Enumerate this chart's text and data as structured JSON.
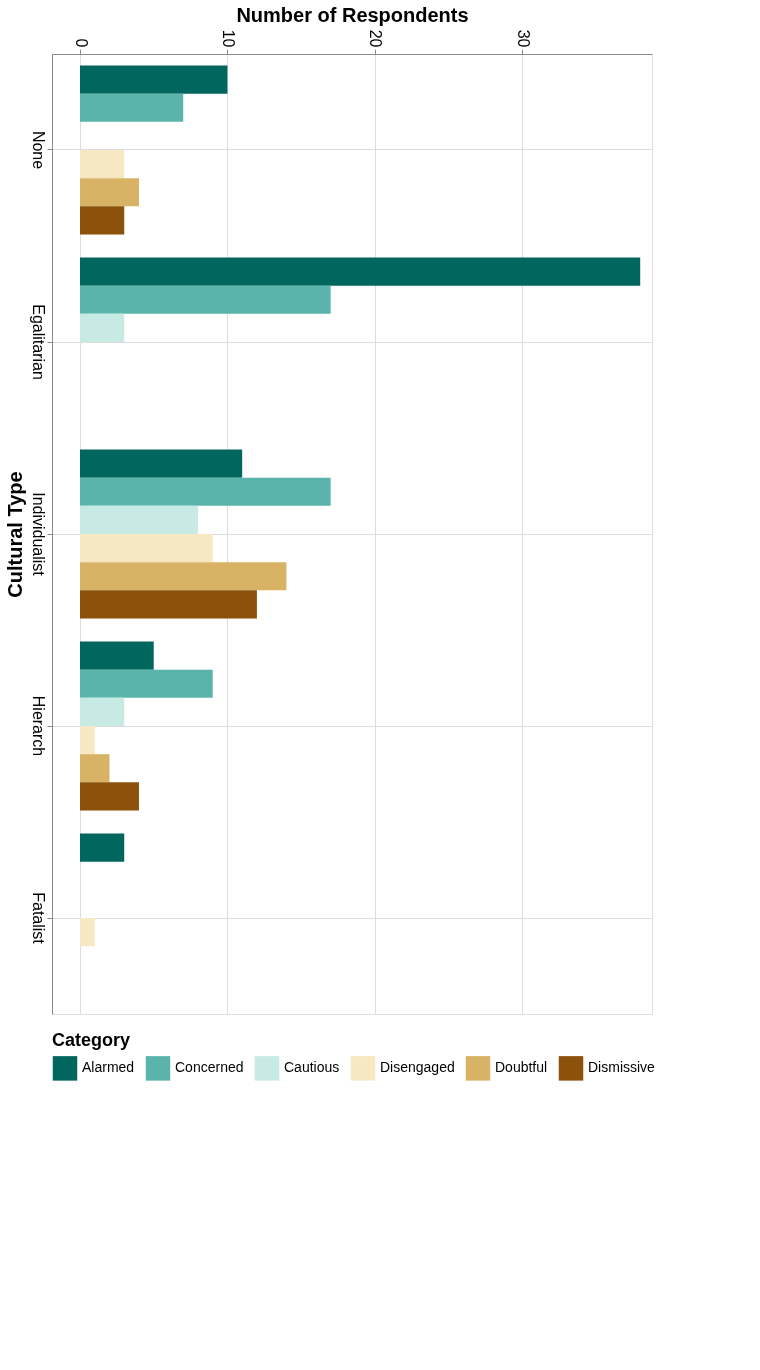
{
  "chart_data": {
    "type": "bar",
    "orientation": "horizontal",
    "xlabel": "Number of Respondents",
    "ylabel": "Cultural Type",
    "legend_title": "Category",
    "categories": [
      "None",
      "Egalitarian",
      "Individualist",
      "Hierarch",
      "Fatalist"
    ],
    "series": [
      {
        "name": "Alarmed",
        "color": "#01665e",
        "values": [
          10,
          38,
          11,
          5,
          3
        ]
      },
      {
        "name": "Concerned",
        "color": "#5ab4ac",
        "values": [
          7,
          17,
          17,
          9,
          null
        ]
      },
      {
        "name": "Cautious",
        "color": "#c7eae5",
        "values": [
          null,
          3,
          8,
          3,
          null
        ]
      },
      {
        "name": "Disengaged",
        "color": "#f6e8c3",
        "values": [
          3,
          null,
          9,
          1,
          1
        ]
      },
      {
        "name": "Doubtful",
        "color": "#d8b365",
        "values": [
          4,
          null,
          14,
          2,
          null
        ]
      },
      {
        "name": "Dismissive",
        "color": "#8c510a",
        "values": [
          3,
          null,
          12,
          4,
          null
        ]
      }
    ],
    "xlim": [
      -1.9,
      38.8
    ],
    "xticks": [
      0,
      10,
      20,
      30
    ],
    "grid": true,
    "legend": "bottom"
  }
}
